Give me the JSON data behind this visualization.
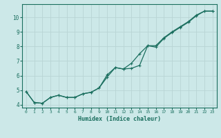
{
  "xlabel": "Humidex (Indice chaleur)",
  "bg_color": "#cce8e8",
  "grid_color": "#b8d4d4",
  "line_color": "#1a6e5e",
  "line1_x": [
    0,
    1,
    2,
    3,
    4,
    5,
    6,
    7,
    8,
    9,
    10,
    11,
    12,
    13,
    14,
    15,
    16,
    17,
    18,
    19,
    20,
    21,
    22,
    23
  ],
  "line1_y": [
    4.9,
    4.15,
    4.1,
    4.5,
    4.65,
    4.5,
    4.5,
    4.75,
    4.85,
    5.15,
    5.9,
    6.55,
    6.45,
    6.85,
    7.5,
    8.05,
    8.05,
    8.6,
    9.0,
    9.35,
    9.7,
    10.15,
    10.42,
    10.42
  ],
  "line2_x": [
    0,
    1,
    2,
    3,
    4,
    5,
    6,
    7,
    8,
    9,
    10,
    11,
    12,
    13,
    14,
    15,
    16,
    17,
    18,
    19,
    20,
    21,
    22,
    23
  ],
  "line2_y": [
    4.9,
    4.15,
    4.1,
    4.5,
    4.65,
    4.5,
    4.5,
    4.75,
    4.85,
    5.15,
    6.05,
    6.55,
    6.45,
    6.5,
    6.7,
    8.05,
    7.95,
    8.55,
    8.95,
    9.3,
    9.65,
    10.1,
    10.42,
    10.42
  ],
  "xlim": [
    -0.5,
    23.5
  ],
  "ylim": [
    3.8,
    10.9
  ],
  "xticks": [
    0,
    1,
    2,
    3,
    4,
    5,
    6,
    7,
    8,
    9,
    10,
    11,
    12,
    13,
    14,
    15,
    16,
    17,
    18,
    19,
    20,
    21,
    22,
    23
  ],
  "yticks": [
    4,
    5,
    6,
    7,
    8,
    9,
    10
  ],
  "marker_size": 2.5,
  "linewidth": 0.9
}
